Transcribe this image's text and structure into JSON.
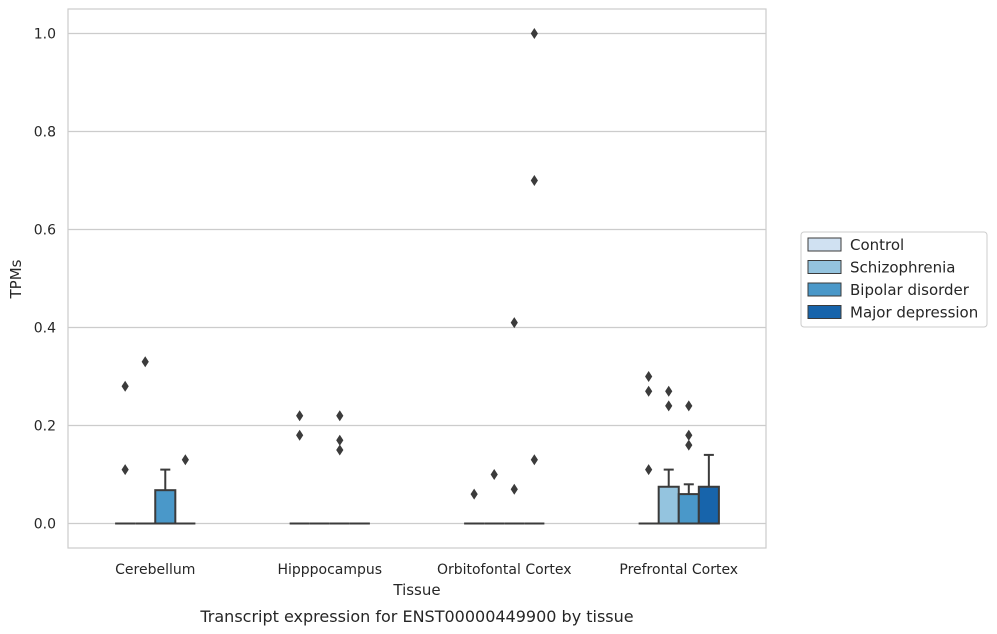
{
  "chart_data": {
    "type": "box",
    "title": "",
    "caption": "Transcript expression for ENST00000449900 by tissue",
    "xlabel": "Tissue",
    "ylabel": "TPMs",
    "ylim": [
      -0.05,
      1.05
    ],
    "yticks": [
      0.0,
      0.2,
      0.4,
      0.6,
      0.8,
      1.0
    ],
    "ytick_labels": [
      "0.0",
      "0.2",
      "0.4",
      "0.6",
      "0.8",
      "1.0"
    ],
    "grid": "horizontal",
    "legend_position": "right",
    "categories": [
      "Cerebellum",
      "Hipppocampus",
      "Orbitofontal Cortex",
      "Prefrontal Cortex"
    ],
    "series": [
      {
        "name": "Control",
        "color": "#d0e1f2",
        "boxes": [
          {
            "q1": 0,
            "median": 0,
            "q3": 0,
            "whisker_low": 0,
            "whisker_high": 0,
            "outliers": [
              0.28,
              0.11
            ]
          },
          {
            "q1": 0,
            "median": 0,
            "q3": 0,
            "whisker_low": 0,
            "whisker_high": 0,
            "outliers": [
              0.22,
              0.18
            ]
          },
          {
            "q1": 0,
            "median": 0,
            "q3": 0,
            "whisker_low": 0,
            "whisker_high": 0,
            "outliers": [
              0.06
            ]
          },
          {
            "q1": 0,
            "median": 0,
            "q3": 0,
            "whisker_low": 0,
            "whisker_high": 0,
            "outliers": [
              0.3,
              0.27,
              0.11
            ]
          }
        ]
      },
      {
        "name": "Schizophrenia",
        "color": "#94c4df",
        "boxes": [
          {
            "q1": 0,
            "median": 0,
            "q3": 0,
            "whisker_low": 0,
            "whisker_high": 0,
            "outliers": [
              0.33
            ]
          },
          {
            "q1": 0,
            "median": 0,
            "q3": 0,
            "whisker_low": 0,
            "whisker_high": 0,
            "outliers": []
          },
          {
            "q1": 0,
            "median": 0,
            "q3": 0,
            "whisker_low": 0,
            "whisker_high": 0,
            "outliers": [
              0.1
            ]
          },
          {
            "q1": 0,
            "median": 0,
            "q3": 0.075,
            "whisker_low": 0,
            "whisker_high": 0.11,
            "outliers": [
              0.27,
              0.24
            ]
          }
        ]
      },
      {
        "name": "Bipolar disorder",
        "color": "#4a98c9",
        "boxes": [
          {
            "q1": 0,
            "median": 0,
            "q3": 0.068,
            "whisker_low": 0,
            "whisker_high": 0.11,
            "outliers": []
          },
          {
            "q1": 0,
            "median": 0,
            "q3": 0,
            "whisker_low": 0,
            "whisker_high": 0,
            "outliers": [
              0.22,
              0.17,
              0.15
            ]
          },
          {
            "q1": 0,
            "median": 0,
            "q3": 0,
            "whisker_low": 0,
            "whisker_high": 0,
            "outliers": [
              0.41,
              0.07
            ]
          },
          {
            "q1": 0,
            "median": 0,
            "q3": 0.06,
            "whisker_low": 0,
            "whisker_high": 0.08,
            "outliers": [
              0.24,
              0.18,
              0.16
            ]
          }
        ]
      },
      {
        "name": "Major depression",
        "color": "#1764ab",
        "boxes": [
          {
            "q1": 0,
            "median": 0,
            "q3": 0,
            "whisker_low": 0,
            "whisker_high": 0,
            "outliers": [
              0.13
            ]
          },
          {
            "q1": 0,
            "median": 0,
            "q3": 0,
            "whisker_low": 0,
            "whisker_high": 0,
            "outliers": []
          },
          {
            "q1": 0,
            "median": 0,
            "q3": 0,
            "whisker_low": 0,
            "whisker_high": 0,
            "outliers": [
              1.0,
              0.7,
              0.13
            ]
          },
          {
            "q1": 0,
            "median": 0,
            "q3": 0.075,
            "whisker_low": 0,
            "whisker_high": 0.14,
            "outliers": []
          }
        ]
      }
    ]
  }
}
